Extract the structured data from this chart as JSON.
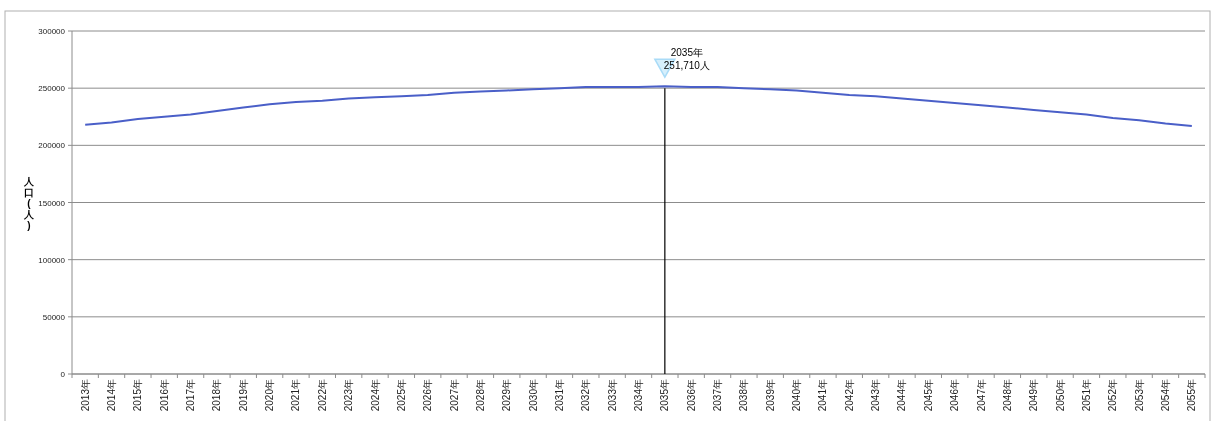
{
  "chart_data": {
    "type": "line",
    "ylabel": "人口(人)",
    "categories": [
      "2013年",
      "2014年",
      "2015年",
      "2016年",
      "2017年",
      "2018年",
      "2019年",
      "2020年",
      "2021年",
      "2022年",
      "2023年",
      "2024年",
      "2025年",
      "2026年",
      "2027年",
      "2028年",
      "2029年",
      "2030年",
      "2031年",
      "2032年",
      "2033年",
      "2034年",
      "2035年",
      "2036年",
      "2037年",
      "2038年",
      "2039年",
      "2040年",
      "2041年",
      "2042年",
      "2043年",
      "2044年",
      "2045年",
      "2046年",
      "2047年",
      "2048年",
      "2049年",
      "2050年",
      "2051年",
      "2052年",
      "2053年",
      "2054年",
      "2055年"
    ],
    "series": [
      {
        "color": "#4a5fc8",
        "values": [
          218000,
          220000,
          223000,
          225000,
          227000,
          230000,
          233000,
          236000,
          238000,
          239000,
          241000,
          242000,
          243000,
          244000,
          246000,
          247000,
          248000,
          249000,
          250000,
          251000,
          251000,
          251000,
          251710,
          251000,
          251000,
          250000,
          249000,
          248000,
          246000,
          244000,
          243000,
          241000,
          239000,
          237000,
          235000,
          233000,
          231000,
          229000,
          227000,
          224000,
          222000,
          219000,
          217000
        ]
      }
    ],
    "ylim": [
      0,
      300000
    ],
    "yticks": [
      0,
      50000,
      100000,
      150000,
      200000,
      250000,
      300000
    ],
    "grid": "y",
    "marker": "none",
    "line_style": "solid",
    "ref_lines": [
      {
        "axis": "x",
        "value": "2035年",
        "color": "#000000"
      }
    ],
    "annotations": [
      {
        "text": "2035年\n251,710人",
        "x": "2035年",
        "y": 251710
      }
    ]
  }
}
